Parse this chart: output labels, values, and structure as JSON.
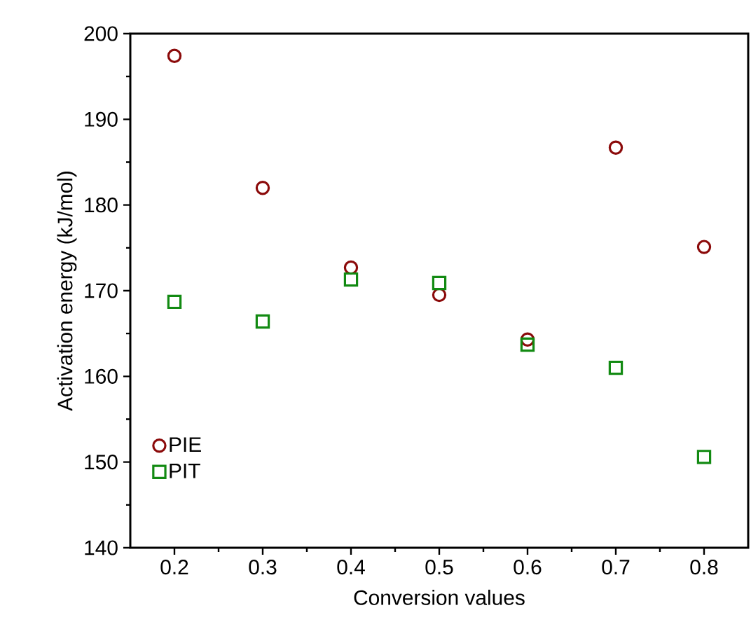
{
  "chart_data": {
    "type": "scatter",
    "xlabel": "Conversion values",
    "ylabel": "Activation energy (kJ/mol)",
    "x": [
      0.2,
      0.3,
      0.4,
      0.5,
      0.6,
      0.7,
      0.8
    ],
    "series": [
      {
        "name": "PIE",
        "color": "#8b0a0a",
        "marker": "circle",
        "values": [
          197.4,
          182.0,
          172.7,
          169.5,
          164.3,
          186.7,
          175.1
        ]
      },
      {
        "name": "PIT",
        "color": "#128a12",
        "marker": "square",
        "values": [
          168.7,
          166.4,
          171.3,
          170.9,
          163.7,
          161.0,
          150.6
        ]
      }
    ],
    "xlim": [
      0.15,
      0.85
    ],
    "xticks": [
      0.2,
      0.3,
      0.4,
      0.5,
      0.6,
      0.7,
      0.8
    ],
    "ylim": [
      140,
      200
    ],
    "yticks": [
      140,
      150,
      160,
      170,
      180,
      190,
      200
    ],
    "grid": false,
    "legend": "bottom left"
  }
}
